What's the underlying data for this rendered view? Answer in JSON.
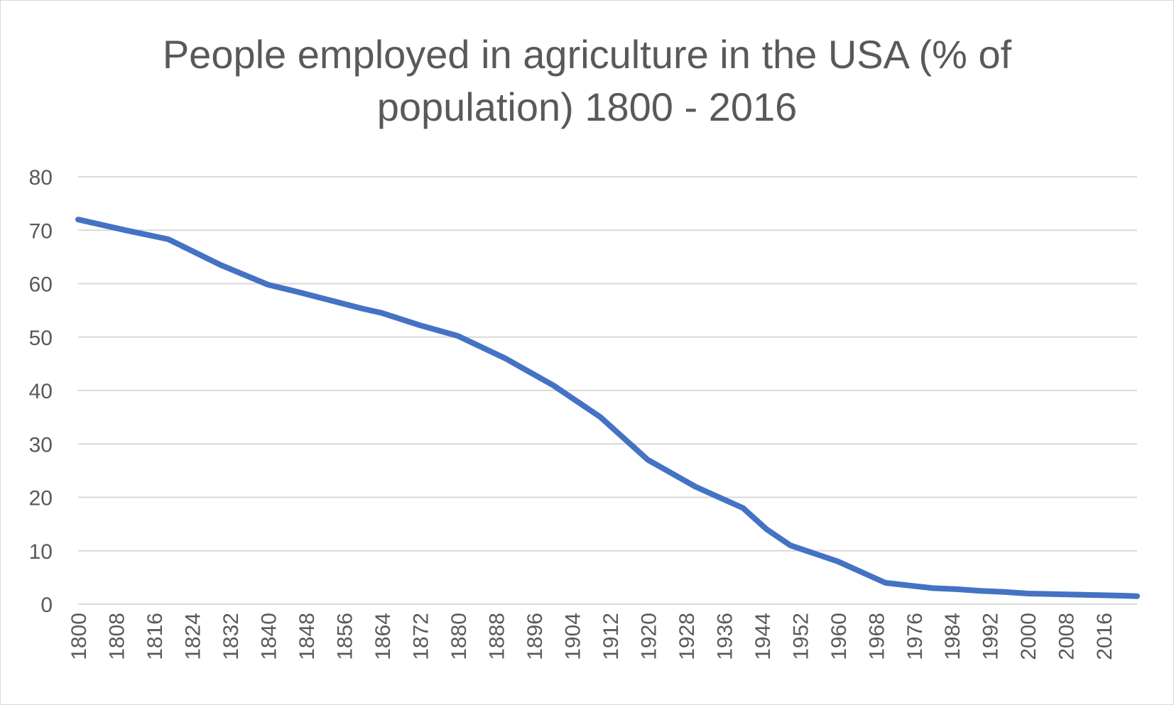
{
  "chart_data": {
    "type": "line",
    "title_lines": [
      "People employed in agriculture in the USA (% of",
      "population) 1800 - 2016"
    ],
    "xlabel": "",
    "ylabel": "",
    "ylim": [
      0,
      80
    ],
    "y_ticks": [
      0,
      10,
      20,
      30,
      40,
      50,
      60,
      70,
      80
    ],
    "x_range": [
      1800,
      2023
    ],
    "x_tick_labels": [
      "1800",
      "1808",
      "1816",
      "1824",
      "1832",
      "1840",
      "1848",
      "1856",
      "1864",
      "1872",
      "1880",
      "1888",
      "1896",
      "1904",
      "1912",
      "1920",
      "1928",
      "1936",
      "1944",
      "1952",
      "1960",
      "1968",
      "1976",
      "1984",
      "1992",
      "2000",
      "2008",
      "2016"
    ],
    "grid": true,
    "legend": "none",
    "series": [
      {
        "color": "#4472c4",
        "x": [
          1800,
          1810,
          1819,
          1830,
          1840,
          1846,
          1860,
          1864,
          1872,
          1880,
          1890,
          1900,
          1910,
          1915,
          1920,
          1925,
          1930,
          1940,
          1945,
          1950,
          1955,
          1960,
          1965,
          1970,
          1975,
          1980,
          1985,
          1990,
          1995,
          2000,
          2005,
          2010,
          2015,
          2020,
          2023
        ],
        "y": [
          72,
          70,
          68.3,
          63.5,
          59.8,
          58.5,
          55.3,
          54.5,
          52.2,
          50.2,
          46,
          41,
          35,
          31,
          27,
          24.5,
          22,
          18,
          14,
          11,
          9.5,
          8,
          6,
          4,
          3.5,
          3,
          2.8,
          2.5,
          2.3,
          2,
          1.9,
          1.8,
          1.7,
          1.6,
          1.5
        ]
      }
    ]
  }
}
